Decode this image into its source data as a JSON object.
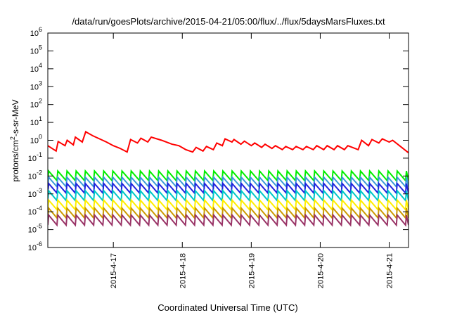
{
  "chart_data": {
    "type": "line",
    "title": "/data/run/goesPlots/archive/2015-04-21/05:00/flux/../flux/5daysMarsFluxes.txt",
    "xlabel": "Coordinated Universal Time (UTC)",
    "ylabel": {
      "prefix": "protons/cm",
      "sup": "2",
      "suffix": "-s-sr-MeV"
    },
    "y_scale": "log",
    "ylim": [
      1e-06,
      1000000.0
    ],
    "y_ticks": [
      {
        "value": 1e-06,
        "base": "10",
        "exp": "-6"
      },
      {
        "value": 1e-05,
        "base": "10",
        "exp": "-5"
      },
      {
        "value": 0.0001,
        "base": "10",
        "exp": "-4"
      },
      {
        "value": 0.001,
        "base": "10",
        "exp": "-3"
      },
      {
        "value": 0.01,
        "base": "10",
        "exp": "-2"
      },
      {
        "value": 0.1,
        "base": "10",
        "exp": "-1"
      },
      {
        "value": 1.0,
        "base": "10",
        "exp": "0"
      },
      {
        "value": 10.0,
        "base": "10",
        "exp": "1"
      },
      {
        "value": 100.0,
        "base": "10",
        "exp": "2"
      },
      {
        "value": 1000.0,
        "base": "10",
        "exp": "3"
      },
      {
        "value": 10000.0,
        "base": "10",
        "exp": "4"
      },
      {
        "value": 100000.0,
        "base": "10",
        "exp": "5"
      },
      {
        "value": 1000000.0,
        "base": "10",
        "exp": "6"
      }
    ],
    "xlim": [
      16.05,
      21.28
    ],
    "x_ticks": [
      {
        "value": 17,
        "label": "2015-4-17"
      },
      {
        "value": 18,
        "label": "2015-4-18"
      },
      {
        "value": 19,
        "label": "2015-4-19"
      },
      {
        "value": 20,
        "label": "2015-4-20"
      },
      {
        "value": 21,
        "label": "2015-4-21"
      }
    ],
    "grid": false,
    "legend": "none",
    "series": [
      {
        "color": "#ff0000",
        "points": [
          [
            16.05,
            0.5
          ],
          [
            16.17,
            0.25
          ],
          [
            16.2,
            0.85
          ],
          [
            16.3,
            0.5
          ],
          [
            16.33,
            1.0
          ],
          [
            16.42,
            0.55
          ],
          [
            16.45,
            1.5
          ],
          [
            16.55,
            0.8
          ],
          [
            16.6,
            3.0
          ],
          [
            16.7,
            1.8
          ],
          [
            16.8,
            1.2
          ],
          [
            16.9,
            0.8
          ],
          [
            17.0,
            0.5
          ],
          [
            17.1,
            0.35
          ],
          [
            17.2,
            0.22
          ],
          [
            17.25,
            1.1
          ],
          [
            17.35,
            0.7
          ],
          [
            17.4,
            1.3
          ],
          [
            17.5,
            0.8
          ],
          [
            17.55,
            1.5
          ],
          [
            17.7,
            1.0
          ],
          [
            17.85,
            0.6
          ],
          [
            17.95,
            0.5
          ],
          [
            18.05,
            0.3
          ],
          [
            18.15,
            0.22
          ],
          [
            18.2,
            0.4
          ],
          [
            18.3,
            0.25
          ],
          [
            18.35,
            0.45
          ],
          [
            18.45,
            0.3
          ],
          [
            18.5,
            0.7
          ],
          [
            18.58,
            0.5
          ],
          [
            18.62,
            1.2
          ],
          [
            18.72,
            0.8
          ],
          [
            18.75,
            1.1
          ],
          [
            18.85,
            0.6
          ],
          [
            18.9,
            0.9
          ],
          [
            19.0,
            0.5
          ],
          [
            19.05,
            0.7
          ],
          [
            19.15,
            0.4
          ],
          [
            19.2,
            0.6
          ],
          [
            19.3,
            0.35
          ],
          [
            19.35,
            0.5
          ],
          [
            19.45,
            0.3
          ],
          [
            19.5,
            0.45
          ],
          [
            19.6,
            0.3
          ],
          [
            19.65,
            0.45
          ],
          [
            19.75,
            0.3
          ],
          [
            19.8,
            0.45
          ],
          [
            19.9,
            0.3
          ],
          [
            19.95,
            0.5
          ],
          [
            20.05,
            0.3
          ],
          [
            20.1,
            0.5
          ],
          [
            20.2,
            0.3
          ],
          [
            20.25,
            0.5
          ],
          [
            20.35,
            0.3
          ],
          [
            20.4,
            0.5
          ],
          [
            20.55,
            0.3
          ],
          [
            20.6,
            1.0
          ],
          [
            20.7,
            0.5
          ],
          [
            20.75,
            1.1
          ],
          [
            20.85,
            0.7
          ],
          [
            20.9,
            1.2
          ],
          [
            21.0,
            0.8
          ],
          [
            21.05,
            1.0
          ],
          [
            21.15,
            0.5
          ],
          [
            21.28,
            0.2
          ]
        ]
      },
      {
        "color": "#00ee00",
        "base": 0.0055,
        "peak": 0.019
      },
      {
        "color": "#3a9ad9",
        "base": 0.0025,
        "peak": 0.0085
      },
      {
        "color": "#2222dd",
        "base": 0.0011,
        "peak": 0.0038
      },
      {
        "color": "#00c8c8",
        "base": 0.00042,
        "peak": 0.0015
      },
      {
        "color": "#ffee00",
        "base": 0.00013,
        "peak": 0.00045
      },
      {
        "color": "#cc9a00",
        "base": 4.5e-05,
        "peak": 0.00016
      },
      {
        "color": "#993366",
        "base": 1.8e-05,
        "peak": 6.5e-05
      }
    ],
    "sawtooth_period_days": 0.133
  }
}
